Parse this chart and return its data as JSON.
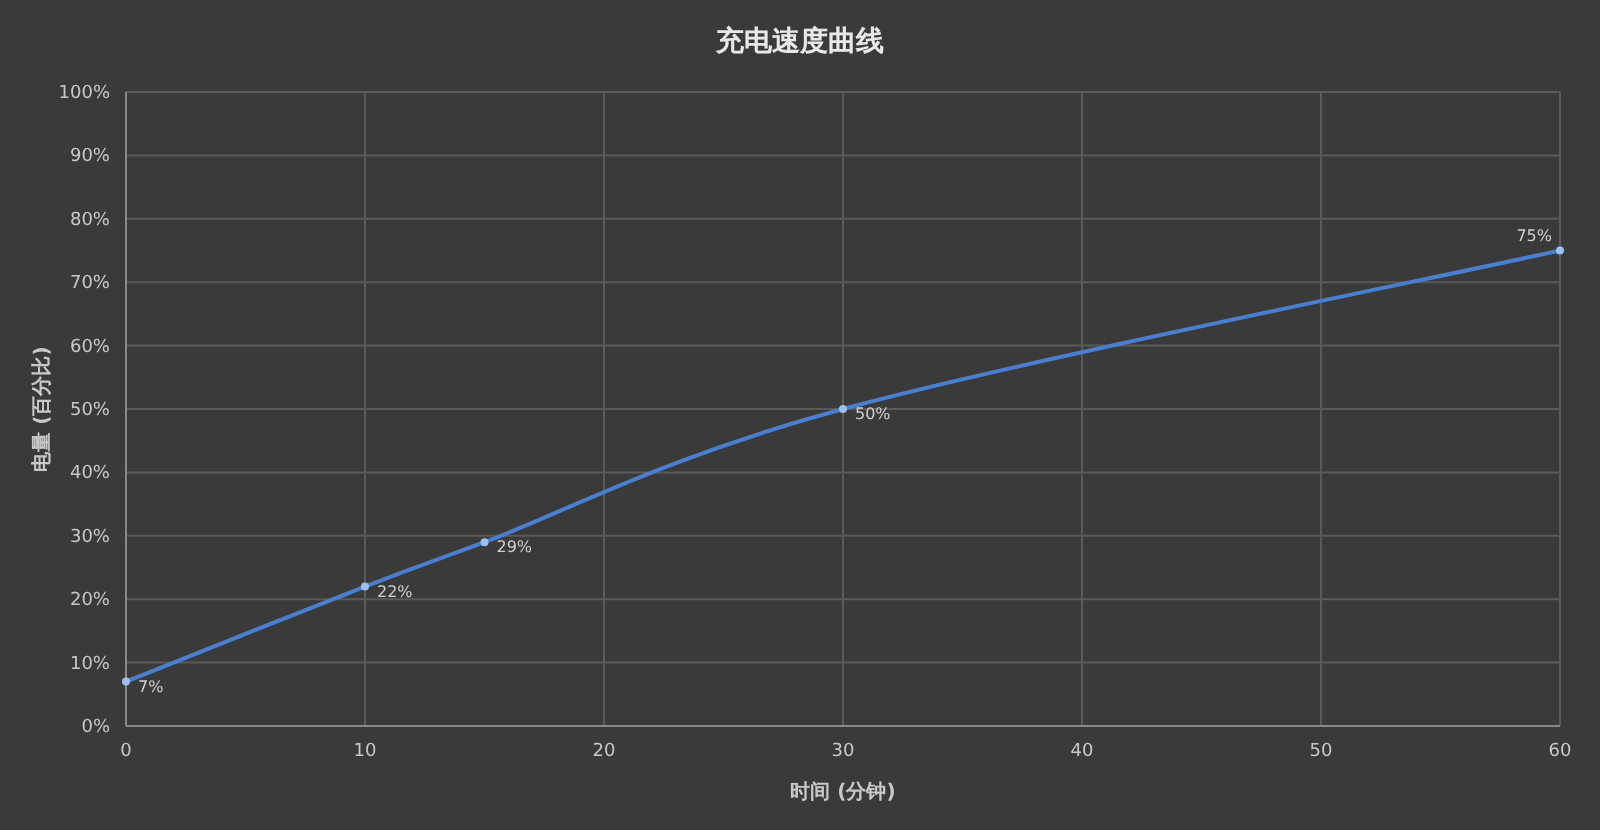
{
  "chart_data": {
    "type": "line",
    "title": "充电速度曲线",
    "xlabel": "时间 (分钟)",
    "ylabel": "电量 (百分比)",
    "x": [
      0,
      10,
      15,
      30,
      60
    ],
    "series": [
      {
        "color": "#4a7fd0",
        "values": [
          7,
          22,
          29,
          50,
          75
        ],
        "value_labels": [
          "7%",
          "22%",
          "29%",
          "50%",
          "75%"
        ]
      }
    ],
    "xlim": [
      0,
      60
    ],
    "xticks": [
      0,
      10,
      20,
      30,
      40,
      50,
      60
    ],
    "ylim": [
      0,
      100
    ],
    "yticks": [
      {
        "value": 0,
        "label": "0%"
      },
      {
        "value": 10,
        "label": "10%"
      },
      {
        "value": 20,
        "label": "20%"
      },
      {
        "value": 30,
        "label": "30%"
      },
      {
        "value": 40,
        "label": "40%"
      },
      {
        "value": 50,
        "label": "50%"
      },
      {
        "value": 60,
        "label": "60%"
      },
      {
        "value": 70,
        "label": "70%"
      },
      {
        "value": 80,
        "label": "80%"
      },
      {
        "value": 90,
        "label": "90%"
      },
      {
        "value": 100,
        "label": "100%"
      }
    ],
    "grid": true,
    "marker": "circle"
  }
}
